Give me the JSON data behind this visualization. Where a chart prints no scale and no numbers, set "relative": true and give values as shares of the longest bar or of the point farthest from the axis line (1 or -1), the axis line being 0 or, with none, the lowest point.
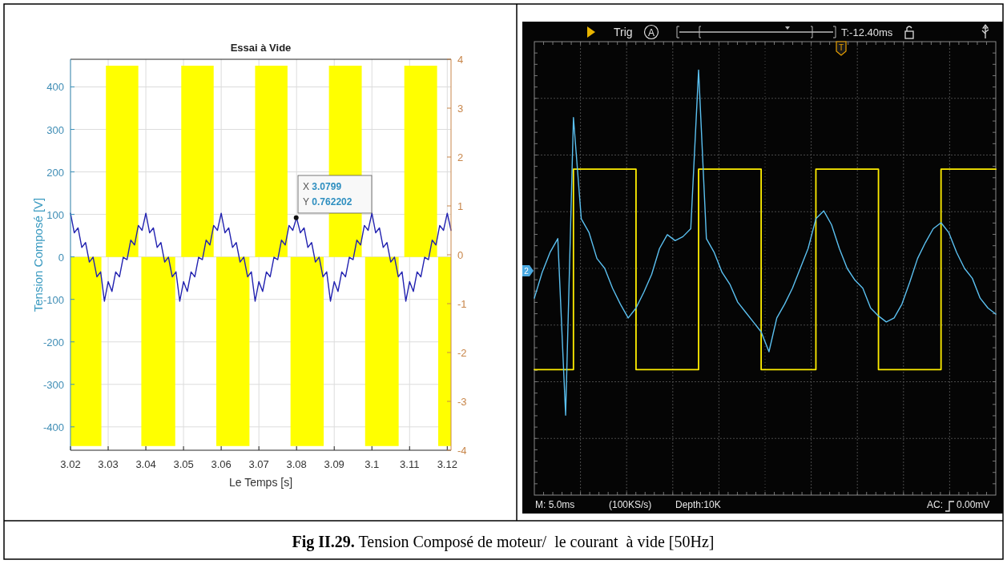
{
  "chart_data": [
    {
      "type": "line",
      "title": "Essai à Vide",
      "xlabel": "Le Temps [s]",
      "ylabel": "Tension Composé [V]",
      "xlim": [
        3.02,
        3.121
      ],
      "ylim": [
        -455,
        465
      ],
      "y2lim": [
        -4,
        4
      ],
      "xticks": [
        3.02,
        3.03,
        3.04,
        3.05,
        3.06,
        3.07,
        3.08,
        3.09,
        3.1,
        3.11,
        3.12
      ],
      "yticks": [
        -400,
        -300,
        -200,
        -100,
        0,
        100,
        200,
        300,
        400
      ],
      "y2ticks": [
        -4,
        -3,
        -2,
        -1,
        0,
        1,
        2,
        3,
        4
      ],
      "grid": true,
      "series": [
        {
          "type": "area",
          "color": "#ffff00",
          "x": [
            3.02,
            3.0282,
            3.0282,
            3.0294,
            3.0294,
            3.038,
            3.038,
            3.0388,
            3.0388,
            3.0478,
            3.0478,
            3.0494,
            3.0494,
            3.058,
            3.058,
            3.0587,
            3.0587,
            3.0675,
            3.0675,
            3.069,
            3.069,
            3.0776,
            3.0776,
            3.0784,
            3.0784,
            3.0872,
            3.0872,
            3.0886,
            3.0886,
            3.0973,
            3.0973,
            3.0982,
            3.0982,
            3.1071,
            3.1071,
            3.1086,
            3.1086,
            3.1173,
            3.1173,
            3.1176,
            3.1176,
            3.121
          ],
          "values": [
            -445,
            -445,
            0,
            0,
            450,
            450,
            0,
            0,
            -445,
            -445,
            0,
            0,
            450,
            450,
            0,
            0,
            -445,
            -445,
            0,
            0,
            450,
            450,
            0,
            0,
            -445,
            -445,
            0,
            0,
            450,
            450,
            0,
            0,
            -445,
            -445,
            0,
            0,
            450,
            450,
            0,
            0,
            -445,
            -445
          ]
        },
        {
          "type": "line",
          "axis": "y2",
          "color": "#2222b0",
          "x": [
            3.02,
            3.021,
            3.022,
            3.023,
            3.024,
            3.025,
            3.026,
            3.027,
            3.028,
            3.029,
            3.03,
            3.031,
            3.032,
            3.033,
            3.034,
            3.035,
            3.036,
            3.037,
            3.038,
            3.039,
            3.04,
            3.041,
            3.042,
            3.043,
            3.044,
            3.045,
            3.046,
            3.047,
            3.048,
            3.049,
            3.05,
            3.051,
            3.052,
            3.053,
            3.054,
            3.055,
            3.056,
            3.057,
            3.058,
            3.059,
            3.06,
            3.061,
            3.062,
            3.063,
            3.064,
            3.065,
            3.066,
            3.067,
            3.068,
            3.069,
            3.07,
            3.071,
            3.072,
            3.073,
            3.074,
            3.075,
            3.076,
            3.077,
            3.078,
            3.079,
            3.08,
            3.081,
            3.082,
            3.083,
            3.084,
            3.085,
            3.086,
            3.087,
            3.088,
            3.089,
            3.09,
            3.091,
            3.092,
            3.093,
            3.094,
            3.095,
            3.096,
            3.097,
            3.098,
            3.099,
            3.1,
            3.101,
            3.102,
            3.103,
            3.104,
            3.105,
            3.106,
            3.107,
            3.108,
            3.109,
            3.11,
            3.111,
            3.112,
            3.113,
            3.114,
            3.115,
            3.116,
            3.117,
            3.118,
            3.119,
            3.12,
            3.121
          ],
          "values": [
            0.85,
            0.45,
            0.55,
            0.15,
            0.25,
            -0.15,
            -0.05,
            -0.45,
            -0.35,
            -0.95,
            -0.55,
            -0.75,
            -0.35,
            -0.45,
            -0.05,
            -0.1,
            0.3,
            0.2,
            0.6,
            0.5,
            0.85,
            0.45,
            0.55,
            0.15,
            0.25,
            -0.15,
            -0.05,
            -0.45,
            -0.35,
            -0.95,
            -0.55,
            -0.75,
            -0.35,
            -0.45,
            -0.05,
            -0.1,
            0.3,
            0.2,
            0.6,
            0.5,
            0.85,
            0.45,
            0.55,
            0.15,
            0.25,
            -0.15,
            -0.05,
            -0.45,
            -0.35,
            -0.95,
            -0.55,
            -0.75,
            -0.35,
            -0.45,
            -0.05,
            -0.1,
            0.3,
            0.2,
            0.6,
            0.5,
            0.76,
            0.45,
            0.55,
            0.15,
            0.25,
            -0.15,
            -0.05,
            -0.45,
            -0.35,
            -0.95,
            -0.55,
            -0.75,
            -0.35,
            -0.45,
            -0.05,
            -0.1,
            0.3,
            0.2,
            0.6,
            0.5,
            0.85,
            0.45,
            0.55,
            0.15,
            0.25,
            -0.15,
            -0.05,
            -0.45,
            -0.35,
            -0.95,
            -0.55,
            -0.75,
            -0.35,
            -0.45,
            -0.05,
            -0.1,
            0.3,
            0.2,
            0.6,
            0.5,
            0.85,
            0.5
          ]
        },
        {
          "type": "scatter",
          "axis": "y2",
          "color": "#111111",
          "marker": "circle",
          "x": [
            3.0799
          ],
          "values": [
            0.76
          ]
        }
      ],
      "annotations": [
        "X 3.0799\nY 0.762202"
      ]
    },
    {
      "type": "line",
      "relative": true,
      "grid": true,
      "categories": [
        null,
        null,
        null,
        null,
        null,
        null,
        null,
        null,
        null,
        null,
        null,
        null,
        null,
        null,
        null,
        null,
        null,
        null,
        null,
        null,
        null,
        null,
        null,
        null,
        null,
        null,
        null,
        null,
        null,
        null,
        null,
        null,
        null,
        null,
        null,
        null,
        null,
        null,
        null,
        null,
        null,
        null,
        null,
        null,
        null,
        null,
        null,
        null,
        null,
        null,
        null,
        null,
        null,
        null,
        null,
        null,
        null,
        null,
        null,
        null
      ],
      "series": [
        {
          "type": "step",
          "color": "#ffee00",
          "values": [
            -0.51,
            -0.51,
            -0.51,
            -0.51,
            -0.51,
            0.5,
            0.5,
            0.5,
            0.5,
            0.5,
            0.5,
            0.5,
            0.5,
            -0.51,
            -0.51,
            -0.51,
            -0.51,
            -0.51,
            -0.51,
            -0.51,
            -0.51,
            0.5,
            0.5,
            0.5,
            0.5,
            0.5,
            0.5,
            0.5,
            0.5,
            -0.51,
            -0.51,
            -0.51,
            -0.51,
            -0.51,
            -0.51,
            -0.51,
            0.5,
            0.5,
            0.5,
            0.5,
            0.5,
            0.5,
            0.5,
            0.5,
            -0.51,
            -0.51,
            -0.51,
            -0.51,
            -0.51,
            -0.51,
            -0.51,
            -0.51,
            0.5,
            0.5,
            0.5,
            0.5,
            0.5,
            0.5,
            0.5,
            0.5
          ]
        },
        {
          "type": "line",
          "color": "#5bc0f0",
          "values": [
            -0.15,
            -0.02,
            0.08,
            0.15,
            -0.74,
            0.76,
            0.25,
            0.18,
            0.05,
            0.0,
            -0.1,
            -0.18,
            -0.25,
            -0.2,
            -0.12,
            -0.03,
            0.1,
            0.17,
            0.14,
            0.16,
            0.2,
            1.0,
            0.15,
            0.08,
            -0.02,
            -0.08,
            -0.17,
            -0.22,
            -0.27,
            -0.32,
            -0.42,
            -0.25,
            -0.18,
            -0.1,
            0.0,
            0.1,
            0.25,
            0.29,
            0.22,
            0.1,
            0.0,
            -0.06,
            -0.1,
            -0.2,
            -0.24,
            -0.27,
            -0.25,
            -0.18,
            -0.07,
            0.05,
            0.13,
            0.2,
            0.23,
            0.18,
            0.08,
            0.0,
            -0.05,
            -0.15,
            -0.2,
            -0.23
          ]
        }
      ],
      "annotations": [
        "Trig",
        "A",
        "T:-12.40ms",
        "T",
        "2",
        "M: 5.0ms",
        "(100KS/s)",
        "Depth:10K",
        "AC:",
        "0.00mV"
      ]
    },
    {
      "type": "other",
      "annotations": [
        "Fig II.29.",
        " Tension Composé de moteur/  le courant  à vide [50Hz]"
      ]
    }
  ]
}
